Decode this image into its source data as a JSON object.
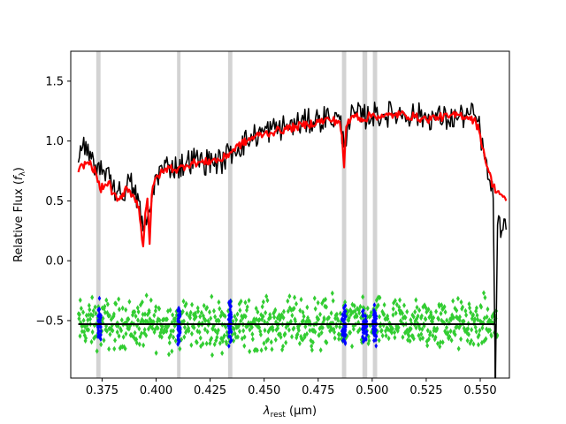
{
  "chart_data": {
    "type": "line",
    "title": "",
    "xlabel": {
      "main": "λ",
      "sub": "rest",
      "unit": " (μm)"
    },
    "ylabel": {
      "main": "Relative Flux (",
      "italic": "f",
      "sub": "λ",
      "close": ")"
    },
    "xlim": [
      0.3605,
      0.5635
    ],
    "ylim": [
      -0.98,
      1.75
    ],
    "xticks": [
      0.375,
      0.4,
      0.425,
      0.45,
      0.475,
      0.5,
      0.525,
      0.55
    ],
    "xtick_labels": [
      "0.375",
      "0.400",
      "0.425",
      "0.450",
      "0.475",
      "0.500",
      "0.525",
      "0.550"
    ],
    "yticks": [
      -0.5,
      0.0,
      0.5,
      1.0,
      1.5
    ],
    "ytick_labels": [
      "−0.5",
      "0.0",
      "0.5",
      "1.0",
      "1.5"
    ],
    "grid": false,
    "legend": "none",
    "masked_regions": [
      [
        0.3723,
        0.3743
      ],
      [
        0.4097,
        0.4113
      ],
      [
        0.4333,
        0.4353
      ],
      [
        0.486,
        0.488
      ],
      [
        0.4955,
        0.4977
      ],
      [
        0.5003,
        0.5023
      ]
    ],
    "series": [
      {
        "role": "observed",
        "color": "#000000",
        "style": "line",
        "x": [
          0.364,
          0.366,
          0.368,
          0.37,
          0.372,
          0.374,
          0.376,
          0.378,
          0.38,
          0.382,
          0.384,
          0.386,
          0.388,
          0.39,
          0.392,
          0.394,
          0.396,
          0.398,
          0.4,
          0.403,
          0.406,
          0.41,
          0.414,
          0.418,
          0.422,
          0.426,
          0.43,
          0.434,
          0.438,
          0.442,
          0.446,
          0.45,
          0.455,
          0.46,
          0.465,
          0.47,
          0.475,
          0.48,
          0.485,
          0.487,
          0.489,
          0.492,
          0.496,
          0.5,
          0.505,
          0.51,
          0.515,
          0.52,
          0.525,
          0.53,
          0.535,
          0.54,
          0.545,
          0.548,
          0.55,
          0.552,
          0.554,
          0.556,
          0.557,
          0.558,
          0.56,
          0.562
        ],
        "y": [
          0.82,
          0.95,
          0.88,
          0.85,
          0.8,
          0.72,
          0.75,
          0.78,
          0.62,
          0.58,
          0.55,
          0.62,
          0.66,
          0.55,
          0.5,
          0.25,
          0.35,
          0.5,
          0.72,
          0.76,
          0.8,
          0.78,
          0.82,
          0.85,
          0.82,
          0.84,
          0.82,
          0.9,
          0.95,
          1.0,
          1.05,
          1.08,
          1.1,
          1.12,
          1.14,
          1.16,
          1.18,
          1.2,
          1.18,
          0.95,
          1.18,
          1.22,
          1.2,
          1.22,
          1.22,
          1.23,
          1.23,
          1.22,
          1.2,
          1.2,
          1.18,
          1.2,
          1.22,
          1.2,
          1.08,
          0.85,
          0.68,
          0.52,
          -0.98,
          0.3,
          0.25,
          0.26
        ]
      },
      {
        "role": "model",
        "color": "#ff0000",
        "style": "line",
        "x": [
          0.364,
          0.366,
          0.368,
          0.37,
          0.372,
          0.374,
          0.376,
          0.378,
          0.38,
          0.382,
          0.384,
          0.386,
          0.388,
          0.39,
          0.392,
          0.394,
          0.395,
          0.396,
          0.397,
          0.398,
          0.4,
          0.403,
          0.406,
          0.41,
          0.414,
          0.418,
          0.422,
          0.426,
          0.43,
          0.434,
          0.438,
          0.442,
          0.446,
          0.45,
          0.455,
          0.46,
          0.465,
          0.47,
          0.475,
          0.48,
          0.485,
          0.486,
          0.487,
          0.488,
          0.49,
          0.492,
          0.496,
          0.5,
          0.505,
          0.51,
          0.515,
          0.52,
          0.525,
          0.53,
          0.535,
          0.54,
          0.545,
          0.548,
          0.55,
          0.552,
          0.554,
          0.556,
          0.558,
          0.56,
          0.562
        ],
        "y": [
          0.74,
          0.8,
          0.82,
          0.8,
          0.74,
          0.6,
          0.62,
          0.66,
          0.56,
          0.5,
          0.52,
          0.62,
          0.58,
          0.52,
          0.45,
          0.12,
          0.4,
          0.52,
          0.14,
          0.55,
          0.7,
          0.74,
          0.78,
          0.76,
          0.8,
          0.82,
          0.82,
          0.84,
          0.84,
          0.9,
          0.96,
          1.0,
          1.04,
          1.06,
          1.08,
          1.1,
          1.12,
          1.14,
          1.16,
          1.18,
          1.16,
          1.05,
          0.78,
          1.12,
          1.18,
          1.22,
          1.18,
          1.22,
          1.2,
          1.22,
          1.22,
          1.2,
          1.18,
          1.2,
          1.2,
          1.22,
          1.2,
          1.16,
          1.05,
          0.88,
          0.74,
          0.62,
          0.58,
          0.55,
          0.5
        ]
      },
      {
        "role": "residual-zero",
        "color": "#000000",
        "style": "hline",
        "x": [
          0.364,
          0.557
        ],
        "y": [
          -0.53,
          -0.53
        ]
      },
      {
        "role": "residual-drop",
        "color": "#000000",
        "style": "vline",
        "x": [
          0.557,
          0.557
        ],
        "y": [
          -0.53,
          -0.98
        ]
      },
      {
        "role": "residuals",
        "color": "#32cd32",
        "style": "scatter",
        "x_range": [
          0.364,
          0.558
        ],
        "center": -0.53,
        "spread": 0.2,
        "count": 900
      },
      {
        "role": "masked-residuals",
        "color": "#0000ff",
        "style": "scatter",
        "center": -0.53,
        "spread": 0.17,
        "ranges": [
          [
            0.373,
            0.3745
          ],
          [
            0.41,
            0.4112
          ],
          [
            0.4335,
            0.435
          ],
          [
            0.486,
            0.4878
          ],
          [
            0.4955,
            0.4975
          ],
          [
            0.5003,
            0.502
          ]
        ],
        "count_per_range": 40
      }
    ]
  }
}
